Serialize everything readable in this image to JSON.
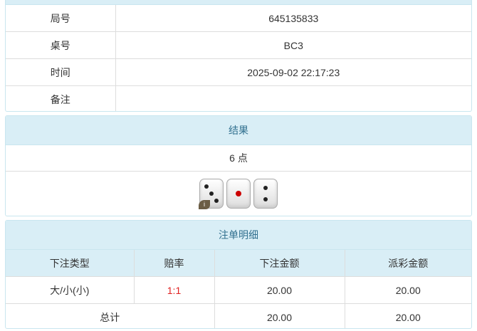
{
  "info": {
    "rows": [
      {
        "label": "局号",
        "value": "645135833"
      },
      {
        "label": "桌号",
        "value": "BC3"
      },
      {
        "label": "时间",
        "value": "2025-09-02 22:17:23"
      },
      {
        "label": "备注",
        "value": ""
      }
    ]
  },
  "result": {
    "title": "结果",
    "points": "6 点",
    "dice": [
      3,
      1,
      2
    ],
    "badge": "i"
  },
  "bets": {
    "title": "注单明细",
    "headers": [
      "下注类型",
      "赔率",
      "下注金额",
      "派彩金额"
    ],
    "rows": [
      {
        "type": "大/小(小)",
        "odds": "1:1",
        "amount": "20.00",
        "payout": "20.00"
      }
    ],
    "total": {
      "label": "总计",
      "amount": "20.00",
      "payout": "20.00"
    }
  },
  "colors": {
    "header_bg": "#d9eef6",
    "header_text": "#31708f",
    "odds": "#e02020"
  }
}
